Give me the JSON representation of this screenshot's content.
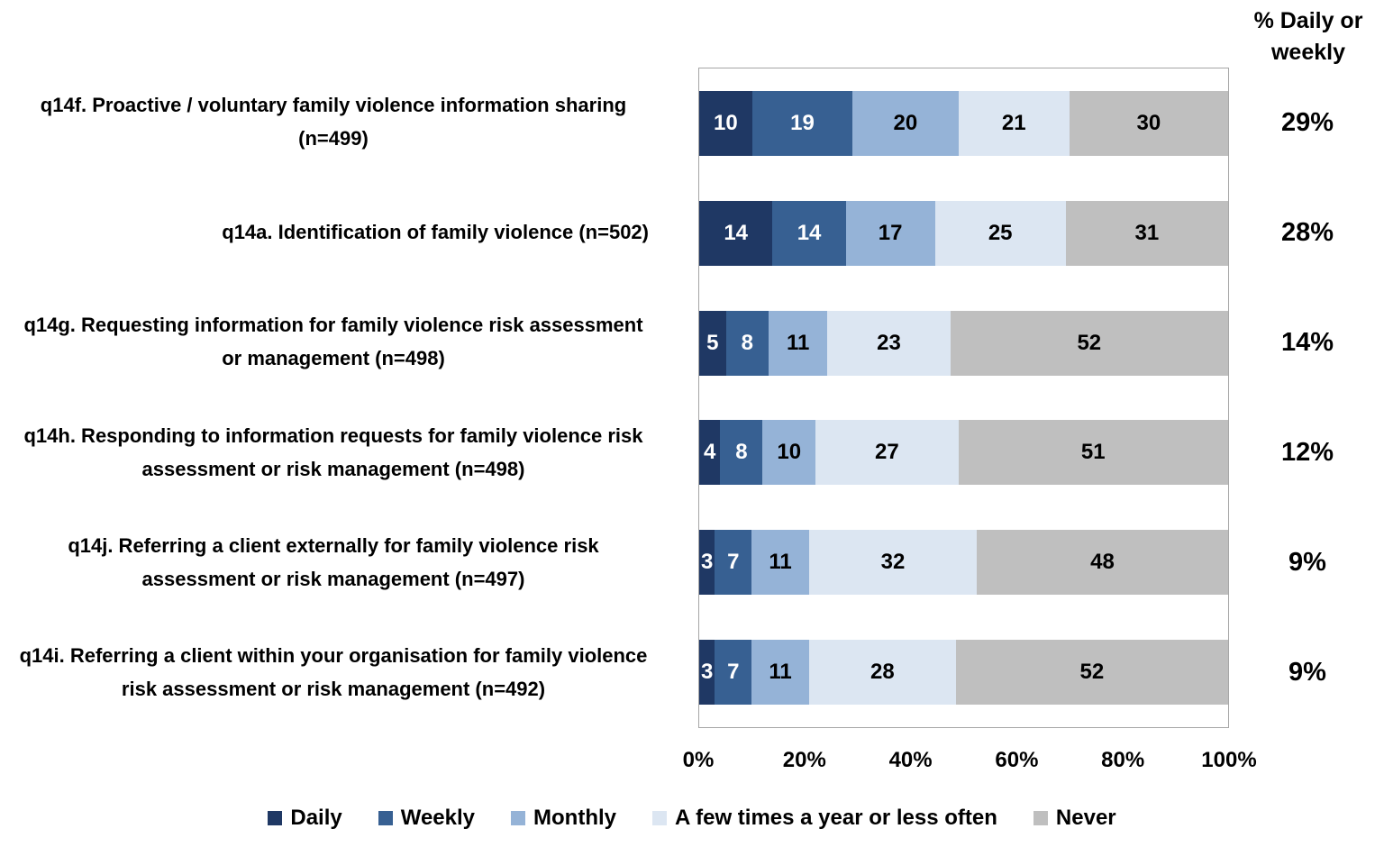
{
  "right_column": {
    "title": "% Daily or weekly"
  },
  "chart_data": {
    "type": "bar",
    "orientation": "horizontal",
    "stacked": "percent",
    "title": "",
    "xlabel": "",
    "ylabel": "",
    "xlim": [
      0,
      100
    ],
    "grid": false,
    "legend_position": "bottom",
    "plot_border_color": "#A6A6A6",
    "categories": [
      "q14f. Proactive / voluntary family violence information sharing (n=499)",
      "q14a. Identification of family violence (n=502)",
      "q14g. Requesting information for family violence risk assessment or management (n=498)",
      "q14h. Responding to information requests for family violence risk assessment or risk management (n=498)",
      "q14j. Referring a client externally for family violence risk assessment or risk management (n=497)",
      "q14i. Referring a client within your organisation for family violence risk assessment or risk management (n=492)"
    ],
    "series": [
      {
        "name": "Daily",
        "color": "#1F3864",
        "label_color": "#FFFFFF",
        "values": [
          10,
          14,
          5,
          4,
          3,
          3
        ]
      },
      {
        "name": "Weekly",
        "color": "#376092",
        "label_color": "#FFFFFF",
        "values": [
          19,
          14,
          8,
          8,
          7,
          7
        ]
      },
      {
        "name": "Monthly",
        "color": "#95B3D7",
        "label_color": "#000000",
        "values": [
          20,
          17,
          11,
          10,
          11,
          11
        ]
      },
      {
        "name": "A few times a year or less often",
        "color": "#DCE6F2",
        "label_color": "#000000",
        "values": [
          21,
          25,
          23,
          27,
          32,
          28
        ]
      },
      {
        "name": "Never",
        "color": "#BFBFBF",
        "label_color": "#000000",
        "values": [
          30,
          31,
          52,
          51,
          48,
          52
        ]
      }
    ],
    "percent_daily_or_weekly": [
      "29%",
      "28%",
      "14%",
      "12%",
      "9%",
      "9%"
    ],
    "x_ticks": [
      "0%",
      "20%",
      "40%",
      "60%",
      "80%",
      "100%"
    ]
  }
}
